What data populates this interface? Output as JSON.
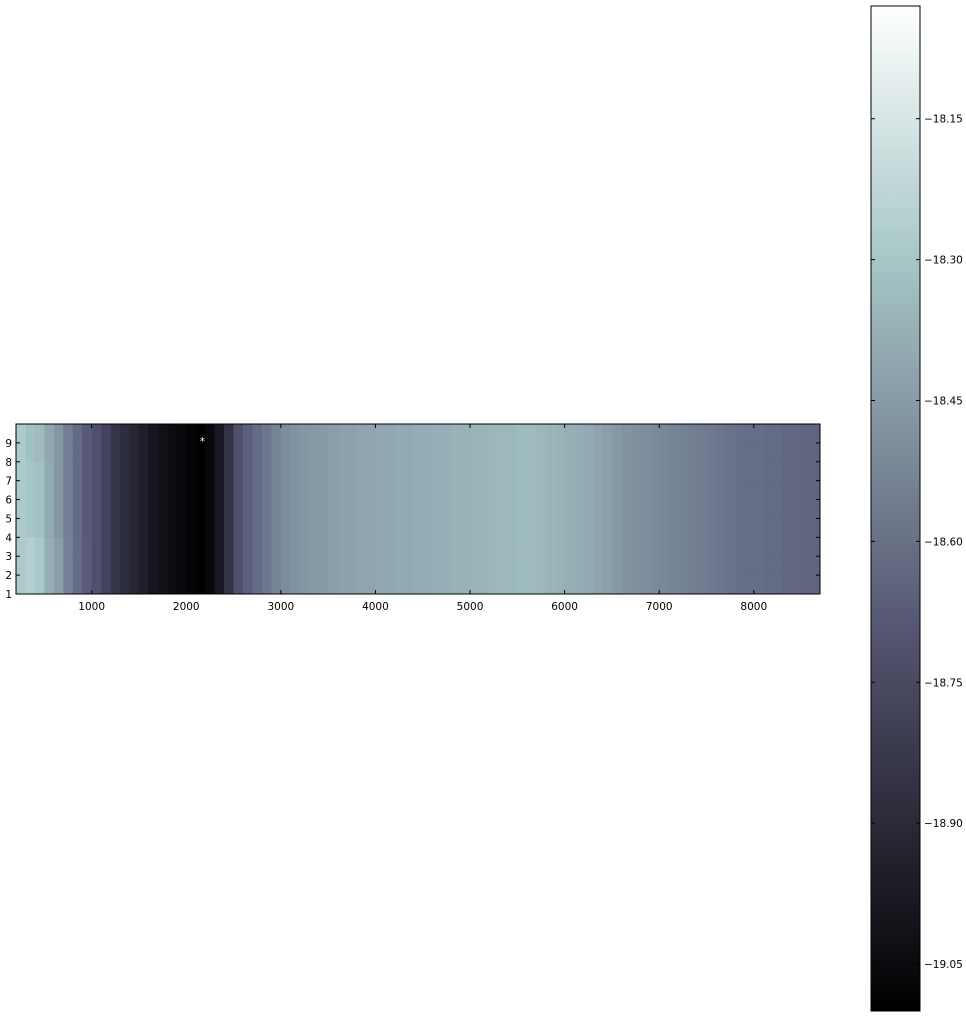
{
  "chart_data": {
    "type": "heatmap",
    "title": "",
    "xlabel": "",
    "ylabel": "",
    "x_range": [
      200,
      8700
    ],
    "y_range": [
      1,
      10
    ],
    "x_ticks": [
      "1000",
      "2000",
      "3000",
      "4000",
      "5000",
      "6000",
      "7000",
      "8000"
    ],
    "x_tick_values": [
      1000,
      2000,
      3000,
      4000,
      5000,
      6000,
      7000,
      8000
    ],
    "y_ticks": [
      "1",
      "2",
      "3",
      "4",
      "5",
      "6",
      "7",
      "8",
      "9"
    ],
    "y_tick_values": [
      1,
      2,
      3,
      4,
      5,
      6,
      7,
      8,
      9
    ],
    "x_bin_width": 100,
    "x_bin_starts": [
      300,
      400,
      500,
      600,
      700,
      800,
      900,
      1000,
      1100,
      1200,
      1300,
      1400,
      1500,
      1600,
      1700,
      1800,
      1900,
      2000,
      2100,
      2200,
      2300,
      2400,
      2500,
      2600,
      2700,
      2800,
      2900,
      3000,
      3100,
      3200,
      3300,
      3400,
      3500,
      3600,
      3700,
      3800,
      3900,
      4000,
      4100,
      4200,
      4300,
      4400,
      4500,
      4600,
      4700,
      4800,
      4900,
      5000,
      5100,
      5200,
      5300,
      5400,
      5500,
      5600,
      5700,
      5800,
      5900,
      6000,
      6100,
      6200,
      6300,
      6400,
      6500,
      6600,
      6700,
      6800,
      6900,
      7000,
      7100,
      7200,
      7300,
      7400,
      7500,
      7600,
      7700,
      7800,
      7900,
      8000,
      8100,
      8200,
      8300,
      8400,
      8500,
      8600
    ],
    "column_values": [
      -18.3,
      -18.32,
      -18.4,
      -18.46,
      -18.55,
      -18.62,
      -18.68,
      -18.72,
      -18.78,
      -18.84,
      -18.88,
      -18.92,
      -18.95,
      -19.0,
      -19.02,
      -19.04,
      -19.06,
      -19.08,
      -19.1,
      -19.06,
      -18.98,
      -18.85,
      -18.72,
      -18.66,
      -18.62,
      -18.58,
      -18.53,
      -18.5,
      -18.48,
      -18.47,
      -18.46,
      -18.45,
      -18.44,
      -18.43,
      -18.43,
      -18.42,
      -18.42,
      -18.41,
      -18.41,
      -18.4,
      -18.4,
      -18.39,
      -18.39,
      -18.38,
      -18.38,
      -18.37,
      -18.37,
      -18.36,
      -18.36,
      -18.35,
      -18.35,
      -18.35,
      -18.34,
      -18.34,
      -18.35,
      -18.36,
      -18.37,
      -18.38,
      -18.39,
      -18.4,
      -18.42,
      -18.44,
      -18.46,
      -18.48,
      -18.49,
      -18.5,
      -18.51,
      -18.52,
      -18.53,
      -18.54,
      -18.55,
      -18.56,
      -18.57,
      -18.58,
      -18.59,
      -18.6,
      -18.61,
      -18.61,
      -18.62,
      -18.62,
      -18.63,
      -18.63,
      -18.64,
      -18.64
    ],
    "row_variation": {
      "columns": [
        300,
        400,
        500,
        600,
        700,
        800,
        900,
        1000
      ],
      "offset_low_rows": [
        0.04,
        0.03,
        0.02,
        0.02,
        0.01,
        0.01,
        0.01,
        0.0
      ],
      "offset_high_rows": [
        -0.02,
        -0.02,
        -0.01,
        -0.01,
        0.0,
        0.0,
        0.0,
        0.0
      ]
    },
    "annotation": {
      "text": "*",
      "x": 2170,
      "y": 9.2
    },
    "colormap": "bone",
    "colorbar": {
      "vmin": -19.1,
      "vmax": -18.03,
      "ticks": [
        "−18.15",
        "−18.30",
        "−18.45",
        "−18.60",
        "−18.75",
        "−18.90",
        "−19.05"
      ],
      "tick_values": [
        -18.15,
        -18.3,
        -18.45,
        -18.6,
        -18.75,
        -18.9,
        -19.05
      ]
    },
    "grid": false
  }
}
